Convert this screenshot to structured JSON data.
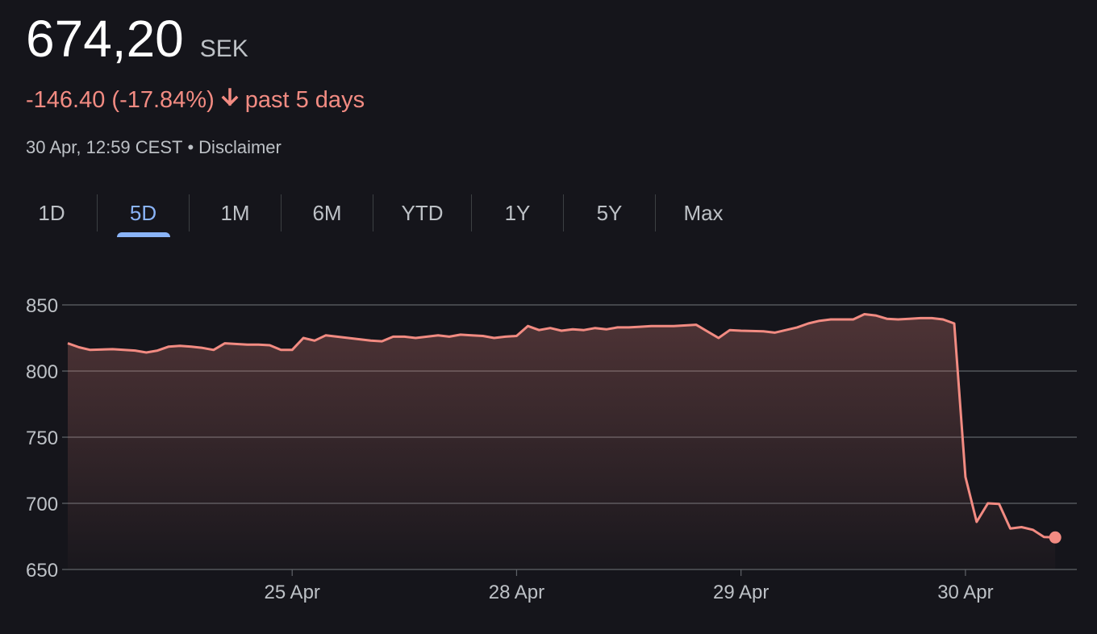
{
  "quote": {
    "price": "674,20",
    "currency": "SEK",
    "change": "-146.40 (-17.84%)",
    "change_arrow": "arrow-down-icon",
    "change_period": "past 5 days",
    "timestamp": "30 Apr, 12:59 CEST",
    "disclaimer": "Disclaimer"
  },
  "tabs": [
    {
      "label": "1D",
      "active": false
    },
    {
      "label": "5D",
      "active": true
    },
    {
      "label": "1M",
      "active": false
    },
    {
      "label": "6M",
      "active": false
    },
    {
      "label": "YTD",
      "active": false
    },
    {
      "label": "1Y",
      "active": false
    },
    {
      "label": "5Y",
      "active": false
    },
    {
      "label": "Max",
      "active": false
    }
  ],
  "colors": {
    "line": "#f28b82",
    "accent": "#8ab4f8",
    "grid": "#5f6368",
    "text": "#bdc1c6"
  },
  "chart_data": {
    "type": "area",
    "title": "",
    "xlabel": "",
    "ylabel": "",
    "ylim": [
      650,
      850
    ],
    "yticks": [
      850,
      800,
      750,
      700,
      650
    ],
    "xticks": [
      {
        "label": "25 Apr",
        "x": 10
      },
      {
        "label": "28 Apr",
        "x": 20
      },
      {
        "label": "29 Apr",
        "x": 30
      },
      {
        "label": "30 Apr",
        "x": 40
      }
    ],
    "x_range": [
      0,
      45
    ],
    "grid": true,
    "series": [
      {
        "values": [
          [
            0,
            821
          ],
          [
            0.5,
            818
          ],
          [
            1,
            816
          ],
          [
            2,
            816.5
          ],
          [
            2.5,
            816
          ],
          [
            3,
            815.5
          ],
          [
            3.5,
            814
          ],
          [
            4,
            815.5
          ],
          [
            4.5,
            818.5
          ],
          [
            5,
            819
          ],
          [
            5.5,
            818.5
          ],
          [
            6,
            817.5
          ],
          [
            6.5,
            816
          ],
          [
            7,
            821
          ],
          [
            8,
            820
          ],
          [
            8.5,
            820
          ],
          [
            9,
            819.5
          ],
          [
            9.5,
            816
          ],
          [
            10,
            816
          ],
          [
            10.5,
            825
          ],
          [
            11,
            823
          ],
          [
            11.5,
            827
          ],
          [
            12,
            826
          ],
          [
            13,
            824
          ],
          [
            13.5,
            823
          ],
          [
            14,
            822.5
          ],
          [
            14.5,
            826
          ],
          [
            15,
            826
          ],
          [
            15.5,
            825
          ],
          [
            16,
            826
          ],
          [
            16.5,
            827
          ],
          [
            17,
            826
          ],
          [
            17.5,
            827.5
          ],
          [
            18,
            827
          ],
          [
            18.5,
            826.5
          ],
          [
            19,
            825
          ],
          [
            19.5,
            826
          ],
          [
            20,
            826.5
          ],
          [
            20.5,
            834
          ],
          [
            21,
            831
          ],
          [
            21.5,
            832.5
          ],
          [
            22,
            830.5
          ],
          [
            22.5,
            831.5
          ],
          [
            23,
            831
          ],
          [
            23.5,
            832.5
          ],
          [
            24,
            831.5
          ],
          [
            24.5,
            833
          ],
          [
            25,
            833
          ],
          [
            25.5,
            833.5
          ],
          [
            26,
            834
          ],
          [
            27,
            834
          ],
          [
            28,
            835
          ],
          [
            28.5,
            830
          ],
          [
            29,
            825
          ],
          [
            29.5,
            831
          ],
          [
            30,
            830.5
          ],
          [
            31,
            830
          ],
          [
            31.5,
            829
          ],
          [
            32,
            831
          ],
          [
            32.5,
            833
          ],
          [
            33,
            836
          ],
          [
            33.5,
            838
          ],
          [
            34,
            839
          ],
          [
            35,
            839
          ],
          [
            35.5,
            843
          ],
          [
            36,
            842
          ],
          [
            36.5,
            839.5
          ],
          [
            37,
            839
          ],
          [
            37.5,
            839.5
          ],
          [
            38,
            840
          ],
          [
            38.5,
            840
          ],
          [
            39,
            839
          ],
          [
            39.5,
            836
          ],
          [
            40,
            720
          ],
          [
            40.5,
            686
          ],
          [
            41,
            700
          ],
          [
            41.5,
            699.5
          ],
          [
            42,
            681
          ],
          [
            42.5,
            682
          ],
          [
            43,
            680
          ],
          [
            43.5,
            674.5
          ],
          [
            44,
            674.2
          ]
        ]
      }
    ]
  }
}
